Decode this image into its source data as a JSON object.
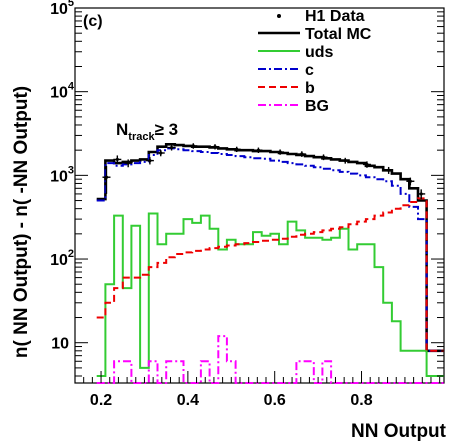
{
  "chart_data": {
    "type": "line",
    "panel_label": "(c)",
    "annotation": {
      "main": "N",
      "sub": "track",
      "rel": "≥ 3"
    },
    "xlabel": "NN Output",
    "ylabel": "n( NN Output) - n( -NN Output)",
    "xlim": [
      0.14,
      0.99
    ],
    "ylim": [
      3.3,
      100000
    ],
    "yscale": "log",
    "x_ticks": [
      0.2,
      0.4,
      0.6,
      0.8
    ],
    "x_tick_labels": [
      "0.2",
      "0.4",
      "0.6",
      "0.8"
    ],
    "y_ticks": [
      10,
      100,
      1000,
      10000,
      100000
    ],
    "y_tick_labels": [
      "10",
      "10",
      "10",
      "10",
      "10"
    ],
    "y_tick_exponents": [
      "",
      "2",
      "3",
      "4",
      "5"
    ],
    "legend_position": "top-right",
    "series": [
      {
        "name": "Total MC",
        "style": "solid",
        "color": "#000000",
        "x": [
          0.2,
          0.22,
          0.24,
          0.26,
          0.28,
          0.3,
          0.32,
          0.34,
          0.36,
          0.38,
          0.4,
          0.42,
          0.44,
          0.46,
          0.48,
          0.5,
          0.52,
          0.54,
          0.56,
          0.58,
          0.6,
          0.62,
          0.64,
          0.66,
          0.68,
          0.7,
          0.72,
          0.74,
          0.76,
          0.78,
          0.8,
          0.82,
          0.84,
          0.86,
          0.88,
          0.9,
          0.92,
          0.94,
          0.96,
          0.98
        ],
        "y": [
          520,
          1500,
          1400,
          1450,
          1500,
          1550,
          1900,
          2200,
          2350,
          2300,
          2250,
          2200,
          2200,
          2150,
          2100,
          2050,
          2000,
          2000,
          1950,
          1950,
          1900,
          1850,
          1800,
          1750,
          1700,
          1650,
          1600,
          1550,
          1500,
          1450,
          1400,
          1300,
          1250,
          1150,
          1050,
          900,
          700,
          500,
          8,
          8
        ]
      },
      {
        "name": "uds",
        "style": "solid",
        "color": "#33cc33",
        "x": [
          0.2,
          0.22,
          0.24,
          0.26,
          0.28,
          0.3,
          0.32,
          0.34,
          0.36,
          0.38,
          0.4,
          0.42,
          0.44,
          0.46,
          0.48,
          0.5,
          0.52,
          0.54,
          0.56,
          0.58,
          0.6,
          0.62,
          0.64,
          0.66,
          0.68,
          0.7,
          0.72,
          0.74,
          0.76,
          0.78,
          0.8,
          0.82,
          0.84,
          0.86,
          0.88,
          0.9,
          0.92,
          0.94,
          0.96,
          0.98
        ],
        "y": [
          4,
          50,
          330,
          45,
          250,
          5,
          350,
          150,
          200,
          200,
          300,
          270,
          330,
          230,
          130,
          170,
          150,
          150,
          210,
          190,
          200,
          150,
          280,
          220,
          180,
          180,
          170,
          180,
          230,
          130,
          150,
          150,
          80,
          30,
          18,
          8,
          8,
          8,
          4,
          4
        ]
      },
      {
        "name": "c",
        "style": "dashdot",
        "color": "#0000cc",
        "x": [
          0.2,
          0.22,
          0.24,
          0.26,
          0.28,
          0.3,
          0.32,
          0.34,
          0.36,
          0.38,
          0.4,
          0.42,
          0.44,
          0.46,
          0.48,
          0.5,
          0.52,
          0.54,
          0.56,
          0.58,
          0.6,
          0.62,
          0.64,
          0.66,
          0.68,
          0.7,
          0.72,
          0.74,
          0.76,
          0.78,
          0.8,
          0.82,
          0.84,
          0.86,
          0.88,
          0.9,
          0.92,
          0.94,
          0.96,
          0.98
        ],
        "y": [
          500,
          1400,
          1300,
          1350,
          1400,
          1450,
          1750,
          2000,
          2100,
          2050,
          2000,
          1950,
          1900,
          1850,
          1800,
          1750,
          1700,
          1650,
          1600,
          1580,
          1500,
          1450,
          1400,
          1350,
          1300,
          1250,
          1200,
          1150,
          1100,
          1050,
          1000,
          950,
          900,
          850,
          750,
          600,
          420,
          300,
          8,
          8
        ]
      },
      {
        "name": "b",
        "style": "dashed",
        "color": "#ee0000",
        "x": [
          0.2,
          0.22,
          0.24,
          0.26,
          0.28,
          0.3,
          0.32,
          0.34,
          0.36,
          0.38,
          0.4,
          0.42,
          0.44,
          0.46,
          0.48,
          0.5,
          0.52,
          0.54,
          0.56,
          0.58,
          0.6,
          0.62,
          0.64,
          0.66,
          0.68,
          0.7,
          0.72,
          0.74,
          0.76,
          0.78,
          0.8,
          0.82,
          0.84,
          0.86,
          0.88,
          0.9,
          0.92,
          0.94,
          0.96,
          0.98
        ],
        "y": [
          20,
          30,
          45,
          60,
          60,
          65,
          80,
          90,
          105,
          115,
          120,
          125,
          130,
          135,
          140,
          145,
          150,
          155,
          160,
          165,
          170,
          175,
          185,
          195,
          200,
          210,
          220,
          230,
          240,
          260,
          280,
          300,
          330,
          360,
          400,
          440,
          480,
          530,
          8,
          8
        ]
      },
      {
        "name": "BG",
        "style": "dashdot",
        "color": "#ff00ff",
        "x": [
          0.2,
          0.22,
          0.24,
          0.26,
          0.28,
          0.3,
          0.32,
          0.34,
          0.36,
          0.38,
          0.4,
          0.42,
          0.44,
          0.46,
          0.48,
          0.5,
          0.52,
          0.54,
          0.56,
          0.58,
          0.6,
          0.62,
          0.64,
          0.66,
          0.68,
          0.7,
          0.72,
          0.74,
          0.76,
          0.78,
          0.8,
          0.82,
          0.84,
          0.86,
          0.88,
          0.9,
          0.92,
          0.94,
          0.96,
          0.98
        ],
        "y": [
          2,
          2,
          6,
          6,
          2,
          2,
          6,
          2,
          6,
          6,
          2,
          2,
          6,
          2,
          12,
          6,
          2,
          2,
          2,
          2,
          2,
          2,
          2,
          6,
          6,
          2,
          6,
          2,
          2,
          2,
          2,
          2,
          2,
          2,
          2,
          2,
          2,
          2,
          2,
          2
        ]
      }
    ],
    "data_points": {
      "name": "H1 Data",
      "color": "#000000",
      "x": [
        0.2125,
        0.2375,
        0.2625,
        0.3125,
        0.3375,
        0.3625,
        0.4125,
        0.4625,
        0.5125,
        0.5625,
        0.6125,
        0.6625,
        0.7125,
        0.7625,
        0.8125,
        0.8625,
        0.9125,
        0.9375
      ],
      "y": [
        950,
        1550,
        1400,
        1500,
        1850,
        2150,
        2250,
        2200,
        2050,
        2000,
        1900,
        1800,
        1650,
        1500,
        1350,
        1150,
        850,
        600
      ],
      "err": [
        350,
        180,
        150,
        150,
        160,
        170,
        170,
        160,
        150,
        150,
        140,
        140,
        130,
        120,
        120,
        110,
        90,
        80
      ]
    }
  }
}
